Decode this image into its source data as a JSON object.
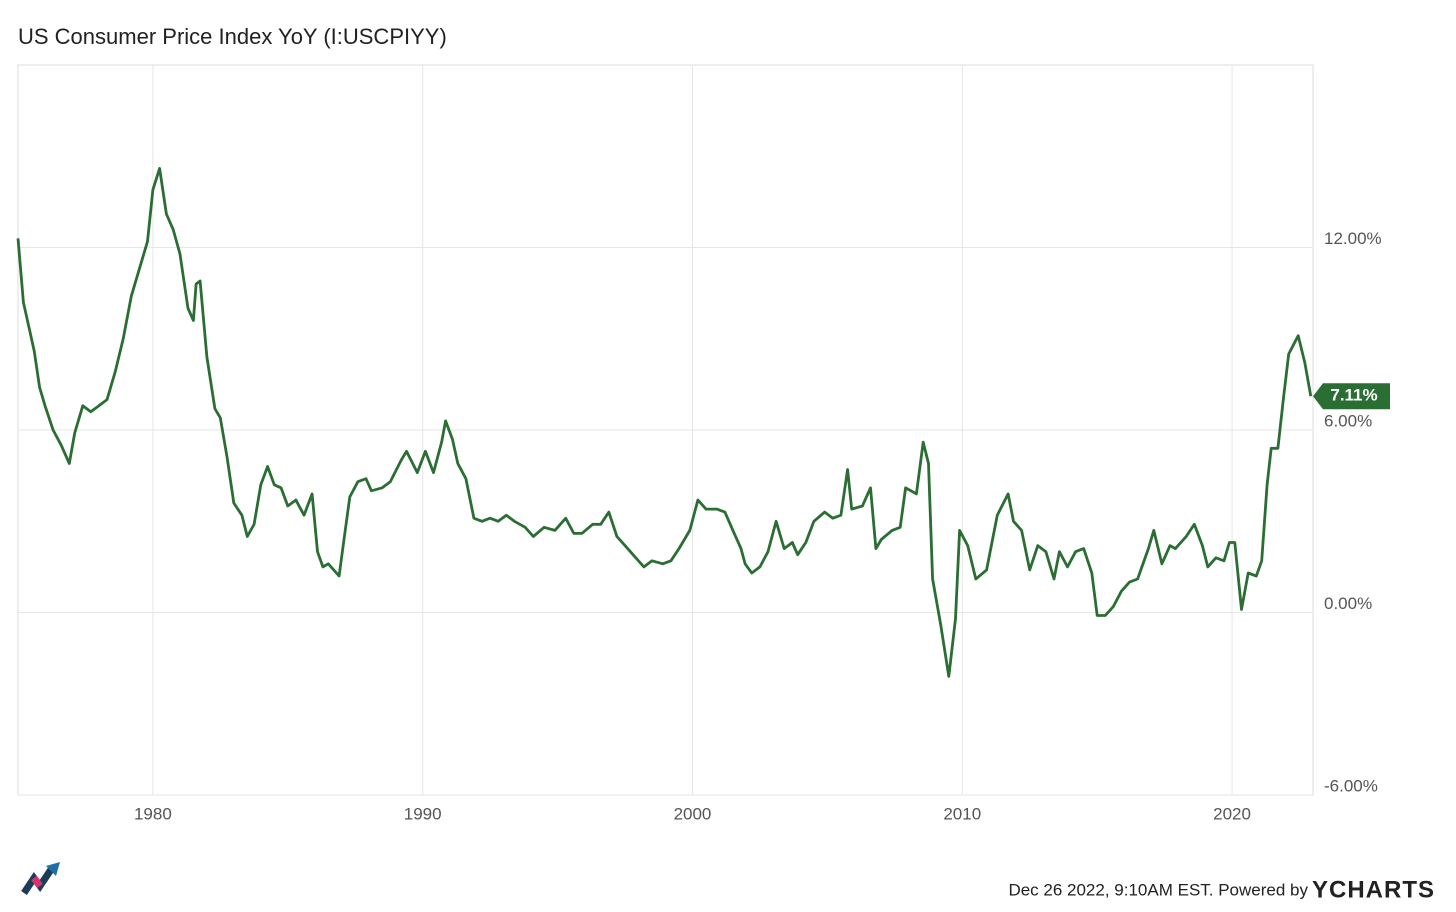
{
  "chart_data": {
    "type": "line",
    "title": "US Consumer Price Index YoY (I:USCPIYY)",
    "series": [
      {
        "name": "US Consumer Price Index YoY",
        "color": "#2b6e33",
        "x": [
          1975.0,
          1975.2,
          1975.4,
          1975.6,
          1975.8,
          1976.0,
          1976.3,
          1976.6,
          1976.9,
          1977.1,
          1977.4,
          1977.7,
          1978.0,
          1978.3,
          1978.6,
          1978.9,
          1979.2,
          1979.5,
          1979.8,
          1980.0,
          1980.25,
          1980.5,
          1980.75,
          1981.0,
          1981.3,
          1981.5,
          1981.6,
          1981.75,
          1982.0,
          1982.3,
          1982.5,
          1982.75,
          1983.0,
          1983.3,
          1983.5,
          1983.75,
          1984.0,
          1984.25,
          1984.5,
          1984.75,
          1985.0,
          1985.3,
          1985.6,
          1985.9,
          1986.1,
          1986.3,
          1986.5,
          1986.9,
          1987.1,
          1987.3,
          1987.6,
          1987.9,
          1988.1,
          1988.5,
          1988.8,
          1989.2,
          1989.4,
          1989.8,
          1990.1,
          1990.4,
          1990.7,
          1990.85,
          1991.1,
          1991.3,
          1991.6,
          1991.9,
          1992.2,
          1992.5,
          1992.8,
          1993.1,
          1993.4,
          1993.8,
          1994.1,
          1994.5,
          1994.9,
          1995.3,
          1995.6,
          1995.9,
          1996.3,
          1996.6,
          1996.9,
          1997.2,
          1997.5,
          1997.9,
          1998.2,
          1998.5,
          1998.9,
          1999.2,
          1999.5,
          1999.9,
          2000.2,
          2000.5,
          2000.9,
          2001.2,
          2001.5,
          2001.8,
          2001.95,
          2002.2,
          2002.5,
          2002.8,
          2003.1,
          2003.4,
          2003.7,
          2003.9,
          2004.2,
          2004.5,
          2004.9,
          2005.2,
          2005.5,
          2005.75,
          2005.9,
          2006.3,
          2006.6,
          2006.8,
          2007.0,
          2007.4,
          2007.7,
          2007.9,
          2008.3,
          2008.55,
          2008.75,
          2008.9,
          2009.2,
          2009.5,
          2009.75,
          2009.9,
          2010.2,
          2010.5,
          2010.9,
          2011.3,
          2011.7,
          2011.9,
          2012.2,
          2012.5,
          2012.8,
          2013.1,
          2013.4,
          2013.6,
          2013.9,
          2014.2,
          2014.5,
          2014.8,
          2015.0,
          2015.3,
          2015.6,
          2015.9,
          2016.2,
          2016.5,
          2016.9,
          2017.1,
          2017.4,
          2017.7,
          2017.9,
          2018.3,
          2018.6,
          2018.9,
          2019.1,
          2019.4,
          2019.7,
          2019.9,
          2020.1,
          2020.35,
          2020.6,
          2020.9,
          2021.1,
          2021.3,
          2021.45,
          2021.7,
          2021.9,
          2022.1,
          2022.45,
          2022.7,
          2022.92
        ],
        "values": [
          12.3,
          10.2,
          9.4,
          8.6,
          7.4,
          6.8,
          6.0,
          5.5,
          4.9,
          5.9,
          6.8,
          6.6,
          6.8,
          7.0,
          7.9,
          9.0,
          10.4,
          11.3,
          12.2,
          13.9,
          14.6,
          13.1,
          12.6,
          11.8,
          10.0,
          9.6,
          10.8,
          10.9,
          8.4,
          6.7,
          6.4,
          5.1,
          3.6,
          3.2,
          2.5,
          2.9,
          4.2,
          4.8,
          4.2,
          4.1,
          3.5,
          3.7,
          3.2,
          3.9,
          2.0,
          1.5,
          1.6,
          1.2,
          2.5,
          3.8,
          4.3,
          4.4,
          4.0,
          4.1,
          4.3,
          5.0,
          5.3,
          4.6,
          5.3,
          4.6,
          5.6,
          6.3,
          5.7,
          4.9,
          4.4,
          3.1,
          3.0,
          3.1,
          3.0,
          3.2,
          3.0,
          2.8,
          2.5,
          2.8,
          2.7,
          3.1,
          2.6,
          2.6,
          2.9,
          2.9,
          3.3,
          2.5,
          2.2,
          1.8,
          1.5,
          1.7,
          1.6,
          1.7,
          2.1,
          2.7,
          3.7,
          3.4,
          3.4,
          3.3,
          2.7,
          2.1,
          1.6,
          1.3,
          1.5,
          2.0,
          3.0,
          2.1,
          2.3,
          1.9,
          2.3,
          3.0,
          3.3,
          3.1,
          3.2,
          4.7,
          3.4,
          3.5,
          4.1,
          2.1,
          2.4,
          2.7,
          2.8,
          4.1,
          3.9,
          5.6,
          4.9,
          1.1,
          -0.4,
          -2.1,
          -0.2,
          2.7,
          2.2,
          1.1,
          1.4,
          3.2,
          3.9,
          3.0,
          2.7,
          1.4,
          2.2,
          2.0,
          1.1,
          2.0,
          1.5,
          2.0,
          2.1,
          1.3,
          -0.1,
          -0.1,
          0.2,
          0.7,
          1.0,
          1.1,
          2.1,
          2.7,
          1.6,
          2.2,
          2.1,
          2.5,
          2.9,
          2.2,
          1.5,
          1.8,
          1.7,
          2.3,
          2.3,
          0.1,
          1.3,
          1.2,
          1.7,
          4.2,
          5.4,
          5.4,
          7.0,
          8.5,
          9.1,
          8.2,
          7.11
        ]
      }
    ],
    "end_label": {
      "value": 7.11,
      "label": "7.11%"
    },
    "xlim": [
      1975,
      2023
    ],
    "xticks": [
      1980,
      1990,
      2000,
      2010,
      2020
    ],
    "ylim": [
      -6,
      18
    ],
    "yticks": [
      {
        "value": -6,
        "label": "-6.00%"
      },
      {
        "value": 0,
        "label": "0.00%"
      },
      {
        "value": 6,
        "label": "6.00%"
      },
      {
        "value": 12,
        "label": "12.00%"
      }
    ],
    "grid": true,
    "footer": "Dec 26 2022, 9:10AM EST. Powered by",
    "brand": "YCHARTS"
  }
}
